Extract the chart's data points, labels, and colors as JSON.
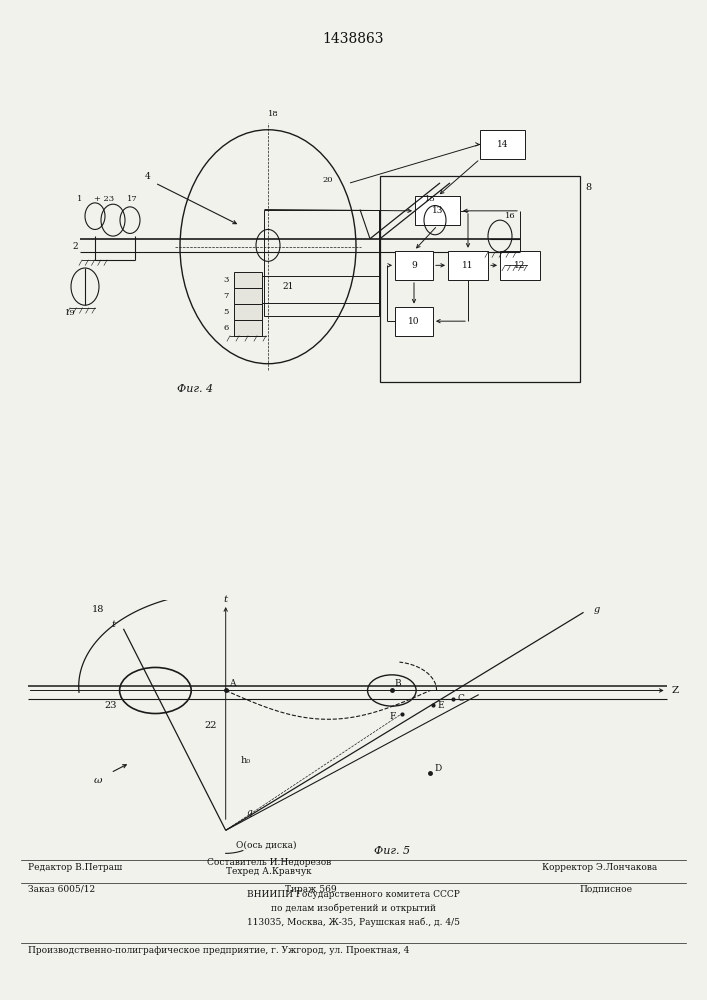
{
  "title": "1438863",
  "title_fontsize": 10,
  "bg_color": "#f2f2ed",
  "fig4_caption": "Фиг. 4",
  "fig5_caption": "Фиг. 5",
  "footer_line1_left": "Редактор В.Петраш",
  "footer_line1_center_top": "Составитель И.Недорезов",
  "footer_line1_center_bot": "Техред А.Кравчук",
  "footer_line1_right": "Корректор Э.Лончакова",
  "footer_line2_left": "Заказ 6005/12",
  "footer_line2_center": "Тираж 569",
  "footer_line2_right": "Подписное",
  "footer_line3": "ВНИИПИ Государственного комитета СССР\nпо делам изобретений и открытий\n113035, Москва, Ж-35, Раушская наб., д. 4/5",
  "footer_line4": "Производственно-полиграфическое предприятие, г. Ужгород, ул. Проектная, 4",
  "text_color": "#111111",
  "line_color": "#1a1a1a"
}
